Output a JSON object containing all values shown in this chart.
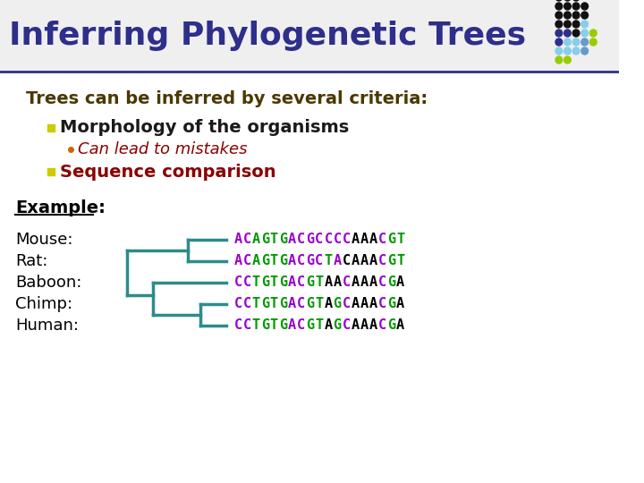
{
  "title": "Inferring Phylogenetic Trees",
  "title_color": "#2E2E8B",
  "title_fontsize": 26,
  "bg_color": "#FFFFFF",
  "header_line_color": "#2E2E8B",
  "subtitle": "Trees can be inferred by several criteria:",
  "subtitle_color": "#4B3800",
  "subtitle_fontsize": 14,
  "bullet1": "Morphology of the organisms",
  "bullet1_color": "#1A1A1A",
  "bullet1_fontsize": 14,
  "bullet1_marker_color": "#CCCC00",
  "sub_bullet1": "Can lead to mistakes",
  "sub_bullet1_color": "#8B0000",
  "sub_bullet1_fontsize": 13,
  "bullet2": "Sequence comparison",
  "bullet2_color": "#8B0000",
  "bullet2_fontsize": 14,
  "bullet2_marker_color": "#CCCC00",
  "example_label": "Example:",
  "example_color": "#000000",
  "example_fontsize": 14,
  "species": [
    "Mouse:",
    "Rat:",
    "Baboon:",
    "Chimp:",
    "Human:"
  ],
  "species_color": "#000000",
  "species_fontsize": 13,
  "seq_strings": [
    "ACAGTGACGCCCCAAACGT",
    "ACAGTGACGCTACAAACGT",
    "CCTGTGACGTAACAAACGA",
    "CCTGTGACGTAGCAAACGA",
    "CCTGTGACGTAGCAAACGA"
  ],
  "tree_color": "#2E8B8B",
  "tree_linewidth": 2.5,
  "dot_rows": [
    [
      "#111111",
      "#111111",
      "#111111"
    ],
    [
      "#111111",
      "#111111",
      "#111111",
      "#111111"
    ],
    [
      "#111111",
      "#111111",
      "#111111",
      "#111111"
    ],
    [
      "#111111",
      "#111111",
      "#111111",
      "#87CEEB"
    ],
    [
      "#2E2E8B",
      "#2E2E8B",
      "#111111",
      "#87CEEB",
      "#99CC00"
    ],
    [
      "#2E2E8B",
      "#87CEEB",
      "#87CEEB",
      "#6699CC",
      "#99CC00"
    ],
    [
      "#87CEEB",
      "#87CEEB",
      "#87CEEB",
      "#6699CC"
    ],
    [
      "#99CC00",
      "#99CC00"
    ]
  ]
}
